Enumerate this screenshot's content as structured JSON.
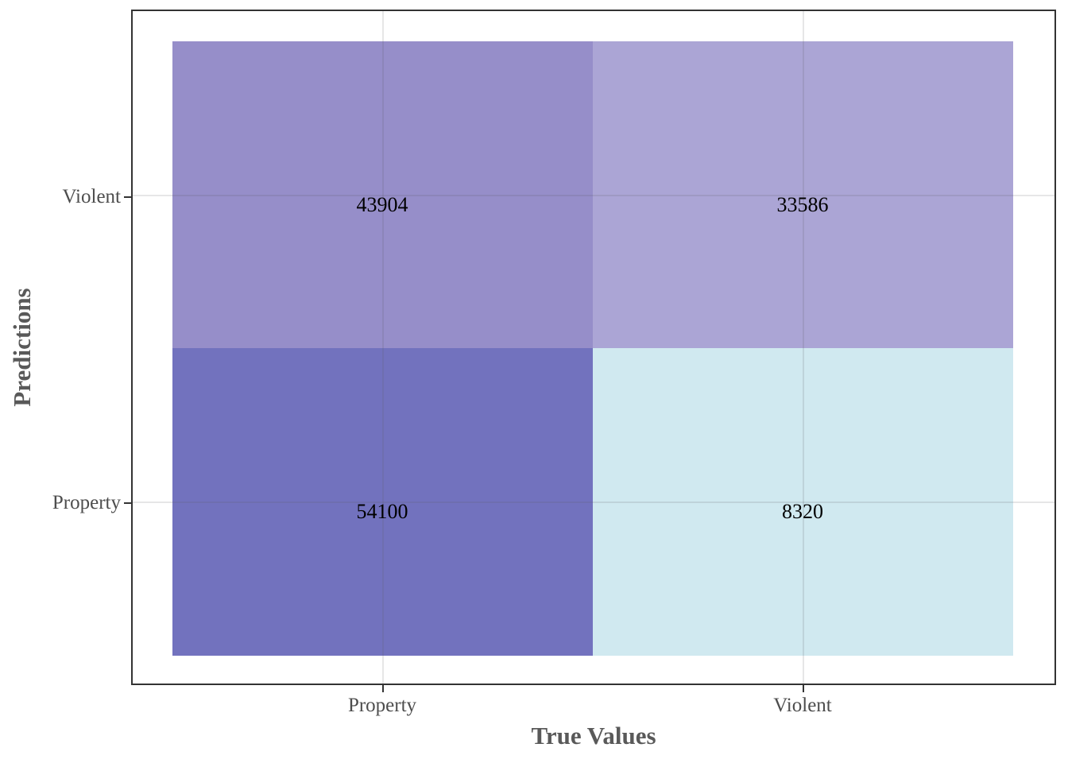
{
  "chart_data": {
    "type": "heatmap",
    "title": "",
    "xlabel": "True Values",
    "ylabel": "Predictions",
    "x_categories": [
      "Property",
      "Violent"
    ],
    "y_categories_top_to_bottom": [
      "Violent",
      "Property"
    ],
    "legend": "none",
    "grid": true,
    "cells": [
      {
        "true_value": "Property",
        "prediction": "Violent",
        "value": "43904",
        "color": "#968EC9"
      },
      {
        "true_value": "Violent",
        "prediction": "Violent",
        "value": "33586",
        "color": "#ABA5D5"
      },
      {
        "true_value": "Property",
        "prediction": "Property",
        "value": "54100",
        "color": "#7272BE"
      },
      {
        "true_value": "Violent",
        "prediction": "Property",
        "value": "8320",
        "color": "#D0E9F0"
      }
    ]
  },
  "axes": {
    "x_title": "True Values",
    "y_title": "Predictions",
    "x_tick_labels": [
      "Property",
      "Violent"
    ],
    "y_tick_labels_top_to_bottom": [
      "Violent",
      "Property"
    ]
  },
  "colors": {
    "background": "#FFFFFF",
    "panel_border": "#333333",
    "grid_line": "#E5E5E7",
    "tick_mark": "#333333",
    "tick_label_text": "#4D4D4D",
    "axis_title_text": "#595959",
    "cell_value_text": "#000000"
  }
}
